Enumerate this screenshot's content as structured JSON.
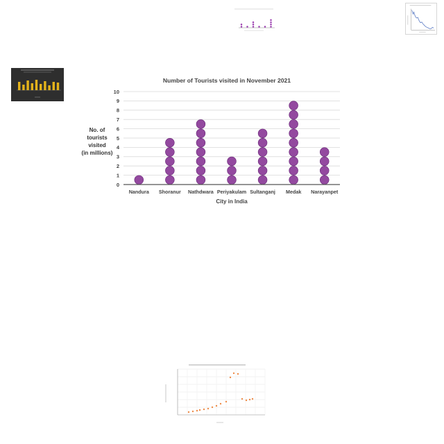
{
  "chart_data": [
    {
      "type": "scatter",
      "title": "Number of Tourists visited in November 2021",
      "xlabel": "City in India",
      "ylabel_lines": [
        "No. of",
        "tourists",
        "visited",
        "(in millions)"
      ],
      "categories": [
        "Nandura",
        "Shoranur",
        "Nathdwara",
        "Periyakulam",
        "Sultanganj",
        "Medak",
        "Narayanpet"
      ],
      "values": [
        1,
        5,
        7,
        3,
        6,
        9,
        4
      ],
      "ylim": [
        0,
        10
      ],
      "yticks": [
        0,
        1,
        2,
        3,
        4,
        5,
        6,
        7,
        8,
        9,
        10
      ],
      "grid": true,
      "marker_color": "#93499f",
      "marker_edge": "#6a2a78"
    }
  ],
  "colors": {
    "thumb_purple": "#9c3fb0",
    "thumb_blue": "#5576c2",
    "thumb_gold": "#e3b21b",
    "thumb_orange": "#ee8c4a",
    "thumb_dark_bg": "#2e2e2e"
  }
}
